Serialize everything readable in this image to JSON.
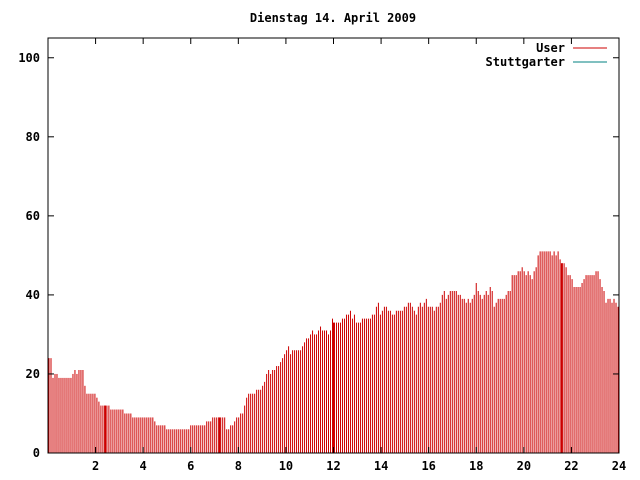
{
  "chart_data": {
    "type": "bar",
    "title": "Dienstag 14. April 2009",
    "xlabel": "",
    "ylabel": "",
    "xlim": [
      0,
      24
    ],
    "ylim": [
      0,
      105
    ],
    "xticks": [
      2,
      4,
      6,
      8,
      10,
      12,
      14,
      16,
      18,
      20,
      22,
      24
    ],
    "yticks": [
      0,
      20,
      40,
      60,
      80,
      100
    ],
    "grid": false,
    "legend_position": "top-right",
    "series": [
      {
        "name": "User",
        "color": "#cc0000",
        "sample_interval_hours": 0.0833,
        "values": [
          24,
          24,
          19,
          20,
          20,
          19,
          19,
          19,
          19,
          19,
          19,
          19,
          20,
          21,
          20,
          21,
          21,
          21,
          17,
          15,
          15,
          15,
          15,
          15,
          14,
          13,
          12,
          12,
          12,
          12,
          12,
          11,
          11,
          11,
          11,
          11,
          11,
          11,
          10,
          10,
          10,
          10,
          9,
          9,
          9,
          9,
          9,
          9,
          9,
          9,
          9,
          9,
          9,
          8,
          7,
          7,
          7,
          7,
          7,
          6,
          6,
          6,
          6,
          6,
          6,
          6,
          6,
          6,
          6,
          6,
          6,
          7,
          7,
          7,
          7,
          7,
          7,
          7,
          7,
          8,
          8,
          8,
          9,
          9,
          9,
          9,
          9,
          9,
          9,
          6,
          6,
          7,
          7,
          8,
          9,
          9,
          10,
          10,
          12,
          14,
          15,
          15,
          15,
          15,
          16,
          16,
          16,
          17,
          18,
          20,
          21,
          20,
          21,
          21,
          22,
          22,
          23,
          24,
          25,
          26,
          27,
          25,
          26,
          26,
          26,
          26,
          26,
          27,
          28,
          29,
          29,
          30,
          31,
          30,
          30,
          31,
          32,
          31,
          31,
          31,
          30,
          31,
          34,
          33,
          33,
          33,
          33,
          34,
          34,
          35,
          35,
          36,
          34,
          35,
          33,
          33,
          33,
          34,
          34,
          34,
          34,
          34,
          35,
          35,
          37,
          38,
          35,
          36,
          37,
          37,
          36,
          36,
          35,
          35,
          36,
          36,
          36,
          36,
          37,
          37,
          38,
          38,
          37,
          36,
          35,
          37,
          38,
          37,
          38,
          39,
          37,
          37,
          37,
          36,
          37,
          37,
          38,
          40,
          41,
          39,
          40,
          41,
          41,
          41,
          41,
          40,
          40,
          39,
          39,
          38,
          39,
          38,
          39,
          40,
          43,
          41,
          40,
          39,
          40,
          41,
          40,
          42,
          41,
          37,
          38,
          39,
          39,
          39,
          39,
          40,
          41,
          41,
          45,
          45,
          45,
          46,
          46,
          47,
          46,
          45,
          46,
          45,
          44,
          46,
          47,
          50,
          51,
          51,
          51,
          51,
          51,
          51,
          50,
          51,
          50,
          51,
          49,
          48,
          48,
          47,
          45,
          45,
          44,
          42,
          42,
          42,
          42,
          43,
          44,
          45,
          45,
          45,
          45,
          45,
          46,
          46,
          44,
          42,
          41,
          38,
          39,
          39,
          38,
          39,
          38,
          37
        ]
      },
      {
        "name": "Stuttgarter",
        "color": "#008080",
        "values": []
      }
    ],
    "highlight_hours": [
      2.4,
      7.2,
      12.0,
      21.6
    ]
  }
}
